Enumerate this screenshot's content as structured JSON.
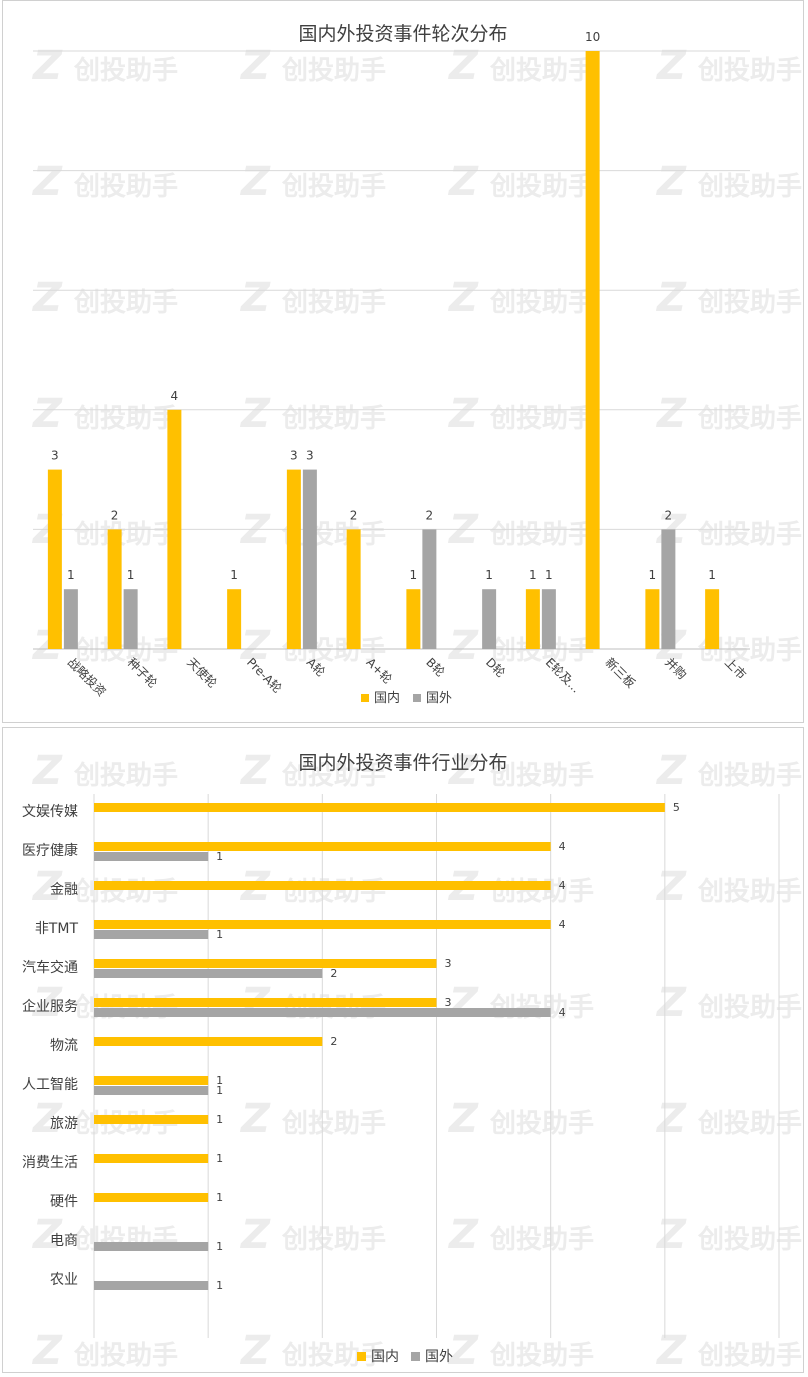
{
  "watermark": "创投助手",
  "colors": {
    "domestic": "#FFC000",
    "foreign": "#A5A5A5"
  },
  "chart_data": [
    {
      "type": "bar",
      "orientation": "vertical",
      "title": "国内外投资事件轮次分布",
      "categories": [
        "战略投资",
        "种子轮",
        "天使轮",
        "Pre-A轮",
        "A轮",
        "A+轮",
        "B轮",
        "D轮",
        "E轮及...",
        "新三板",
        "并购",
        "上市"
      ],
      "series": [
        {
          "name": "国内",
          "values": [
            3,
            2,
            4,
            1,
            3,
            2,
            1,
            null,
            1,
            10,
            1,
            1
          ]
        },
        {
          "name": "国外",
          "values": [
            1,
            1,
            null,
            null,
            3,
            null,
            2,
            1,
            1,
            null,
            2,
            null
          ]
        }
      ],
      "ylim": [
        0,
        10
      ],
      "grid": true,
      "legend": "bottom"
    },
    {
      "type": "bar",
      "orientation": "horizontal",
      "title": "国内外投资事件行业分布",
      "categories": [
        "文娱传媒",
        "医疗健康",
        "金融",
        "非TMT",
        "汽车交通",
        "企业服务",
        "物流",
        "人工智能",
        "旅游",
        "消费生活",
        "硬件",
        "电商",
        "农业"
      ],
      "series": [
        {
          "name": "国内",
          "values": [
            5,
            4,
            4,
            4,
            3,
            3,
            2,
            1,
            1,
            1,
            1,
            null,
            null
          ]
        },
        {
          "name": "国外",
          "values": [
            null,
            1,
            null,
            1,
            2,
            4,
            null,
            1,
            null,
            null,
            null,
            1,
            1
          ]
        }
      ],
      "xlim": [
        0,
        6
      ],
      "grid": true,
      "legend": "bottom"
    }
  ]
}
